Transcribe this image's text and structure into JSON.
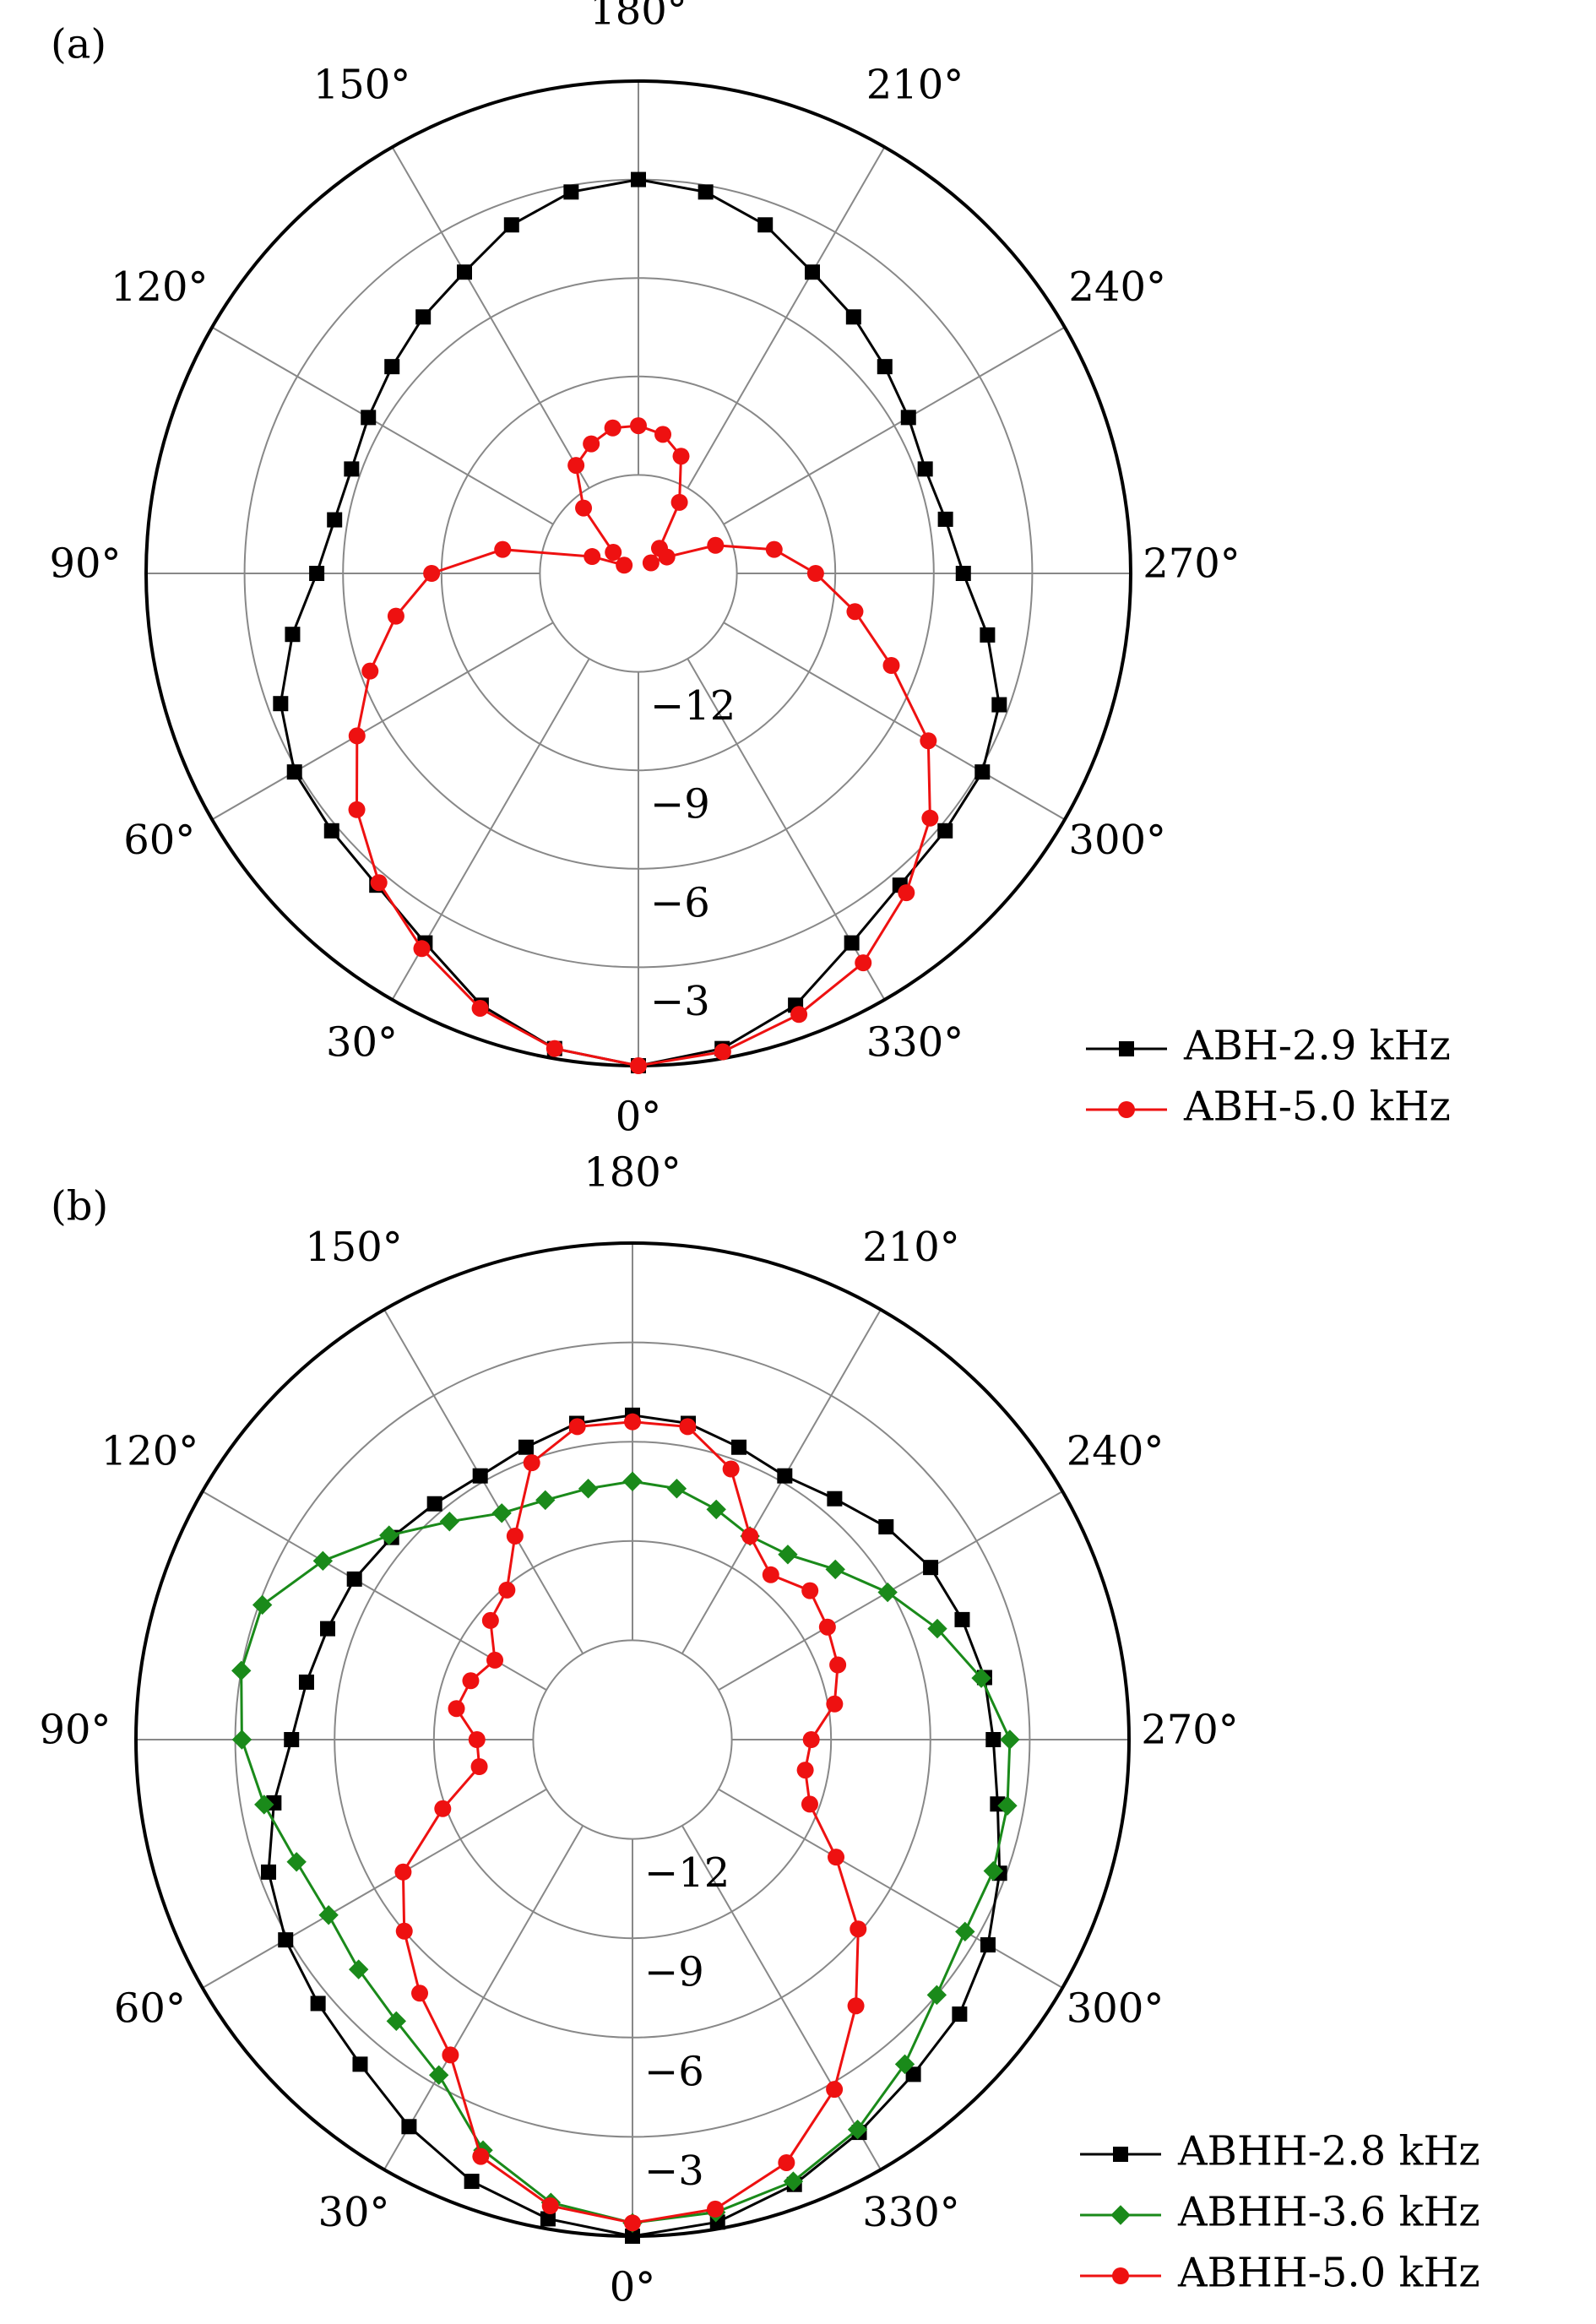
{
  "chart_data": [
    {
      "type": "polar",
      "label": "(a)",
      "rlim": [
        -15,
        0
      ],
      "rticks": [
        {
          "value": -12,
          "label": "−12"
        },
        {
          "value": -9,
          "label": "−9"
        },
        {
          "value": -6,
          "label": "−6"
        },
        {
          "value": -3,
          "label": "−3"
        }
      ],
      "thetaticks": [
        {
          "value": 0,
          "label": "0°"
        },
        {
          "value": 30,
          "label": "30°"
        },
        {
          "value": 60,
          "label": "60°"
        },
        {
          "value": 90,
          "label": "90°"
        },
        {
          "value": 120,
          "label": "120°"
        },
        {
          "value": 150,
          "label": "150°"
        },
        {
          "value": 180,
          "label": "180°"
        },
        {
          "value": 210,
          "label": "210°"
        },
        {
          "value": 240,
          "label": "240°"
        },
        {
          "value": 270,
          "label": "270°"
        },
        {
          "value": 300,
          "label": "300°"
        },
        {
          "value": 330,
          "label": "330°"
        }
      ],
      "grid": true,
      "legend": "lower right",
      "theta": [
        0,
        10,
        20,
        30,
        40,
        50,
        60,
        70,
        80,
        90,
        100,
        110,
        120,
        130,
        140,
        150,
        160,
        170,
        180,
        190,
        200,
        210,
        220,
        230,
        240,
        250,
        260,
        270,
        280,
        290,
        300,
        310,
        320,
        330,
        340,
        350
      ],
      "series": [
        {
          "name": "ABH-2.9 kHz",
          "color": "#000000",
          "marker": "square",
          "values": [
            0,
            -0.3,
            -1.0,
            -2.0,
            -2.6,
            -2.8,
            -2.9,
            -3.4,
            -4.3,
            -5.2,
            -5.6,
            -5.7,
            -5.5,
            -5.2,
            -4.8,
            -4.4,
            -3.7,
            -3.2,
            -3.0,
            -3.2,
            -3.7,
            -4.4,
            -4.8,
            -5.2,
            -5.5,
            -5.7,
            -5.5,
            -5.1,
            -4.2,
            -3.3,
            -2.9,
            -2.8,
            -2.6,
            -2.0,
            -1.0,
            -0.3
          ]
        },
        {
          "name": "ABH-5.0 kHz",
          "color": "#ee1111",
          "marker": "circle",
          "values": [
            0,
            -0.3,
            -0.9,
            -1.8,
            -2.7,
            -3.8,
            -5.1,
            -6.3,
            -7.5,
            -8.7,
            -10.8,
            -13.5,
            -14.5,
            -14.0,
            -12.4,
            -11.2,
            -10.8,
            -10.5,
            -10.5,
            -10.7,
            -11.2,
            -12.5,
            -14.0,
            -14.5,
            -14.0,
            -12.5,
            -10.8,
            -9.6,
            -8.3,
            -6.8,
            -4.8,
            -3.4,
            -2.3,
            -1.3,
            -0.7,
            -0.2
          ]
        }
      ]
    },
    {
      "type": "polar",
      "label": "(b)",
      "rlim": [
        -15,
        0
      ],
      "rticks": [
        {
          "value": -12,
          "label": "−12"
        },
        {
          "value": -9,
          "label": "−9"
        },
        {
          "value": -6,
          "label": "−6"
        },
        {
          "value": -3,
          "label": "−3"
        }
      ],
      "thetaticks": [
        {
          "value": 0,
          "label": "0°"
        },
        {
          "value": 30,
          "label": "30°"
        },
        {
          "value": 60,
          "label": "60°"
        },
        {
          "value": 90,
          "label": "90°"
        },
        {
          "value": 120,
          "label": "120°"
        },
        {
          "value": 150,
          "label": "150°"
        },
        {
          "value": 180,
          "label": "180°"
        },
        {
          "value": 210,
          "label": "210°"
        },
        {
          "value": 240,
          "label": "240°"
        },
        {
          "value": 270,
          "label": "270°"
        },
        {
          "value": 300,
          "label": "300°"
        },
        {
          "value": 330,
          "label": "330°"
        }
      ],
      "grid": true,
      "legend": "lower right",
      "theta": [
        0,
        10,
        20,
        30,
        40,
        50,
        60,
        70,
        80,
        90,
        100,
        110,
        120,
        130,
        140,
        150,
        160,
        170,
        180,
        190,
        200,
        210,
        220,
        230,
        240,
        250,
        260,
        270,
        280,
        290,
        300,
        310,
        320,
        330,
        340,
        350
      ],
      "series": [
        {
          "name": "ABHH-2.8 kHz",
          "color": "#000000",
          "marker": "square",
          "values": [
            0,
            -0.3,
            -0.8,
            -1.5,
            -2.2,
            -2.6,
            -2.9,
            -3.3,
            -4.0,
            -4.7,
            -5.0,
            -5.2,
            -5.3,
            -5.5,
            -5.7,
            -5.8,
            -5.6,
            -5.3,
            -5.2,
            -5.3,
            -5.6,
            -5.8,
            -5.5,
            -5.0,
            -4.6,
            -4.4,
            -4.2,
            -4.1,
            -3.8,
            -3.2,
            -2.6,
            -2.1,
            -1.8,
            -1.3,
            -0.7,
            -0.2
          ]
        },
        {
          "name": "ABHH-3.6 kHz",
          "color": "#1a8a1a",
          "marker": "diamond",
          "values": [
            -0.4,
            -0.8,
            -1.8,
            -3.3,
            -3.9,
            -4.2,
            -4.4,
            -4.2,
            -3.7,
            -3.2,
            -3.0,
            -3.1,
            -4.2,
            -5.4,
            -6.4,
            -7.1,
            -7.3,
            -7.3,
            -7.2,
            -7.3,
            -7.6,
            -7.9,
            -7.7,
            -7.0,
            -6.1,
            -5.2,
            -4.3,
            -3.6,
            -3.5,
            -3.4,
            -3.4,
            -3.0,
            -2.2,
            -1.4,
            -0.8,
            -0.5
          ]
        },
        {
          "name": "ABHH-5.0 kHz",
          "color": "#ee1111",
          "marker": "circle",
          "values": [
            -0.4,
            -0.7,
            -1.6,
            -4.0,
            -5.0,
            -6.0,
            -7.0,
            -8.9,
            -10.3,
            -10.3,
            -9.6,
            -9.8,
            -10.2,
            -9.4,
            -9.1,
            -7.9,
            -6.1,
            -5.4,
            -5.4,
            -5.4,
            -6.3,
            -7.9,
            -8.5,
            -8.0,
            -8.2,
            -8.4,
            -8.8,
            -9.6,
            -9.7,
            -9.3,
            -7.9,
            -6.1,
            -4.5,
            -2.8,
            -1.4,
            -0.6
          ]
        }
      ]
    }
  ]
}
